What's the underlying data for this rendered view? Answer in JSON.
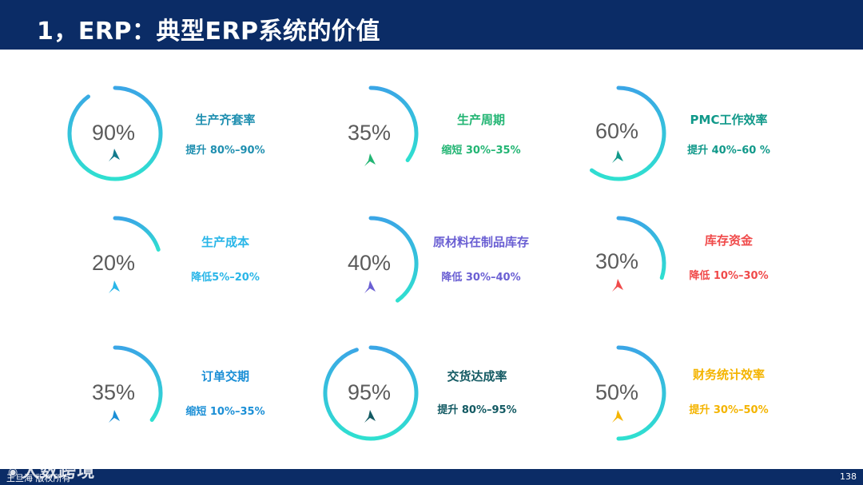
{
  "slide": {
    "title": "1，ERP：典型ERP系统的价值",
    "footer_credit": "王旦海 版权所有",
    "page_number": "138",
    "watermark": "大数跨境"
  },
  "metrics": [
    {
      "percent": "90%",
      "value": 0.9,
      "label": "生产齐套率",
      "sub": "提升 80%–90%",
      "color": "#1f8fb0",
      "arrow_color": "#127a8c"
    },
    {
      "percent": "35%",
      "value": 0.35,
      "label": "生产周期",
      "sub": "缩短 30%–35%",
      "color": "#22b573",
      "arrow_color": "#22b573"
    },
    {
      "percent": "60%",
      "value": 0.6,
      "label": "PMC工作效率",
      "sub": "提升 40%–60 %",
      "color": "#11998a",
      "arrow_color": "#11998a"
    },
    {
      "percent": "20%",
      "value": 0.2,
      "label": "生产成本",
      "sub": "降低5%–20%",
      "color": "#29b6e8",
      "arrow_color": "#29b6e8"
    },
    {
      "percent": "40%",
      "value": 0.4,
      "label": "原材料在制品库存",
      "sub": "降低 30%–40%",
      "color": "#6a5fd3",
      "arrow_color": "#6a5fd3"
    },
    {
      "percent": "30%",
      "value": 0.3,
      "label": "库存资金",
      "sub": "降低 10%–30%",
      "color": "#f04a4a",
      "arrow_color": "#f04a4a"
    },
    {
      "percent": "35%",
      "value": 0.35,
      "label": "订单交期",
      "sub": "缩短 10%–35%",
      "color": "#1b8fd6",
      "arrow_color": "#1b8fd6"
    },
    {
      "percent": "95%",
      "value": 0.95,
      "label": "交货达成率",
      "sub": "提升 80%–95%",
      "color": "#135a63",
      "arrow_color": "#135a63"
    },
    {
      "percent": "50%",
      "value": 0.5,
      "label": "财务统计效率",
      "sub": "提升 30%–50%",
      "color": "#f4b400",
      "arrow_color": "#f4b400"
    }
  ]
}
